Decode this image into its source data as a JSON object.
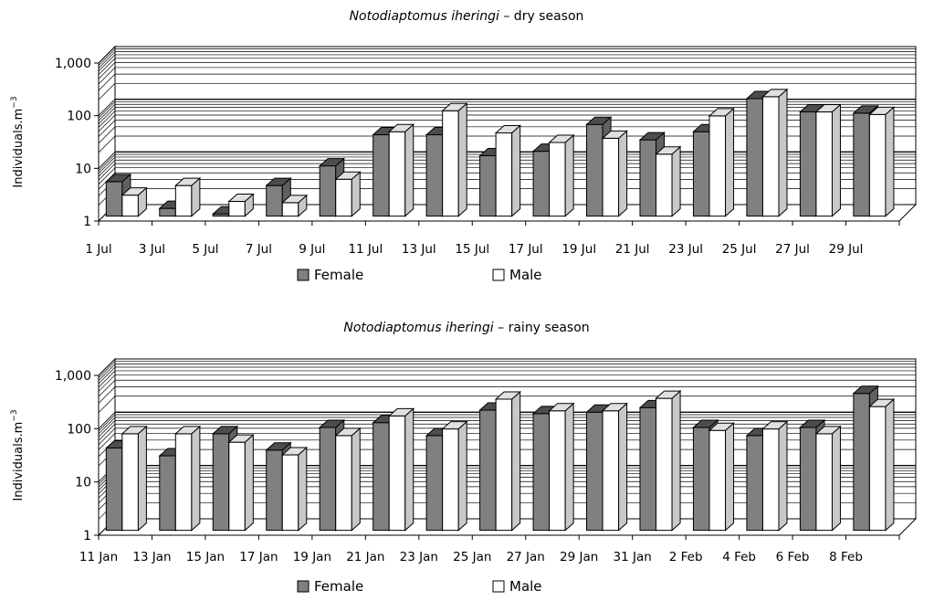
{
  "chart_data": [
    {
      "type": "bar",
      "title_species": "Notodiaptomus iheringi",
      "title_suffix": " – dry season",
      "ylabel": "Individuals.m",
      "ylabel_sup": "−3",
      "yscale": "log",
      "ylim": [
        1,
        1000
      ],
      "yticks": [
        "1",
        "10",
        "100",
        "1,000"
      ],
      "categories": [
        "1 Jul",
        "3 Jul",
        "5 Jul",
        "7 Jul",
        "9 Jul",
        "11 Jul",
        "13 Jul",
        "15 Jul",
        "17 Jul",
        "19 Jul",
        "21 Jul",
        "23 Jul",
        "25 Jul",
        "27 Jul",
        "29 Jul"
      ],
      "series": [
        {
          "name": "Female",
          "color": "#808080",
          "values": [
            4.5,
            1.4,
            1.1,
            3.8,
            9,
            35,
            35,
            14,
            17,
            55,
            28,
            40,
            170,
            95,
            90
          ]
        },
        {
          "name": "Male",
          "color": "#ffffff",
          "values": [
            2.5,
            3.8,
            1.9,
            1.8,
            5,
            40,
            100,
            38,
            25,
            30,
            15,
            80,
            185,
            95,
            85
          ]
        }
      ],
      "grid": true,
      "legend": "bottom"
    },
    {
      "type": "bar",
      "title_species": "Notodiaptomus iheringi",
      "title_suffix": " – rainy season",
      "ylabel": "Individuals.m",
      "ylabel_sup": "−3",
      "yscale": "log",
      "ylim": [
        1,
        1000
      ],
      "yticks": [
        "1",
        "10",
        "100",
        "1,000"
      ],
      "categories": [
        "11 Jan",
        "13 Jan",
        "15 Jan",
        "17 Jan",
        "19 Jan",
        "21 Jan",
        "23 Jan",
        "25 Jan",
        "27 Jan",
        "29 Jan",
        "31 Jan",
        "2 Feb",
        "4 Feb",
        "6 Feb",
        "8 Feb"
      ],
      "series": [
        {
          "name": "Female",
          "color": "#808080",
          "values": [
            35,
            25,
            65,
            32,
            85,
            105,
            60,
            180,
            155,
            165,
            200,
            85,
            60,
            85,
            370
          ]
        },
        {
          "name": "Male",
          "color": "#ffffff",
          "values": [
            65,
            65,
            45,
            26,
            60,
            140,
            80,
            290,
            175,
            175,
            300,
            75,
            80,
            65,
            210
          ]
        }
      ],
      "grid": true,
      "legend": "bottom"
    }
  ]
}
